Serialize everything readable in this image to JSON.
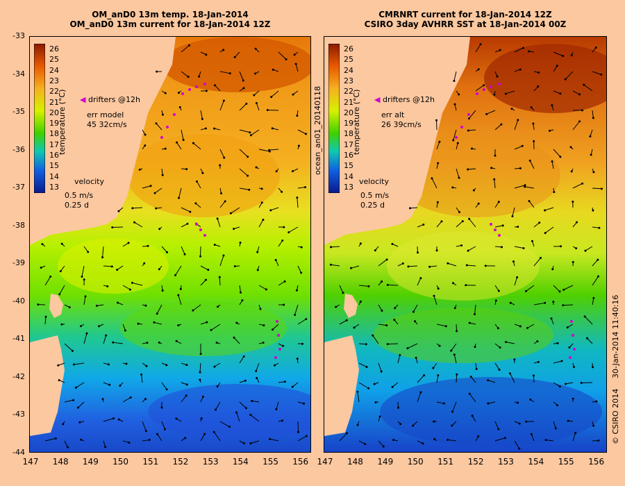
{
  "left_panel": {
    "title_line1": "OM_anD0 13m temp. 18-Jan-2014",
    "title_line2": "OM_anD0 13m current for 18-Jan-2014 12Z",
    "legend_drifters": "drifters @12h",
    "err_label": "err model",
    "err_values": "45 32cm/s",
    "velocity_label": "velocity",
    "velocity_scale1": "0.5 m/s",
    "velocity_scale2": "0.25 d"
  },
  "right_panel": {
    "title_line1": "CMRNRT current for 18-Jan-2014 12Z",
    "title_line2": "CSIRO 3day AVHRR SST at 18-Jan-2014 00Z",
    "legend_drifters": "drifters @12h",
    "err_label": "err alt",
    "err_values": "26 39cm/s",
    "velocity_label": "velocity",
    "velocity_scale1": "0.5 m/s",
    "velocity_scale2": "0.25 d",
    "side_label": "ocean_an01_20140118"
  },
  "colorbar": {
    "title": "temperature (°C)",
    "ticks": [
      "26",
      "25",
      "24",
      "23",
      "22",
      "21",
      "20",
      "19",
      "18",
      "17",
      "16",
      "15",
      "14",
      "13"
    ]
  },
  "axes": {
    "y_labels": [
      "-33",
      "-34",
      "-35",
      "-36",
      "-37",
      "-38",
      "-39",
      "-40",
      "-41",
      "-42",
      "-43",
      "-44"
    ],
    "x_labels_left": [
      "147",
      "148",
      "149",
      "150",
      "151",
      "152",
      "153",
      "154",
      "155",
      "156"
    ],
    "x_labels_right": [
      "147",
      "148",
      "149",
      "150",
      "151",
      "152",
      "153",
      "154",
      "155",
      "156"
    ]
  },
  "footer": {
    "timestamp": "30-Jan-2014 11:40:16",
    "copyright": "© CSIRO 2014"
  },
  "colors": {
    "land": "#fcc8a0",
    "sst_26": "#8b1a00",
    "sst_13": "#0a1a8c",
    "drifter": "#d000d0"
  }
}
